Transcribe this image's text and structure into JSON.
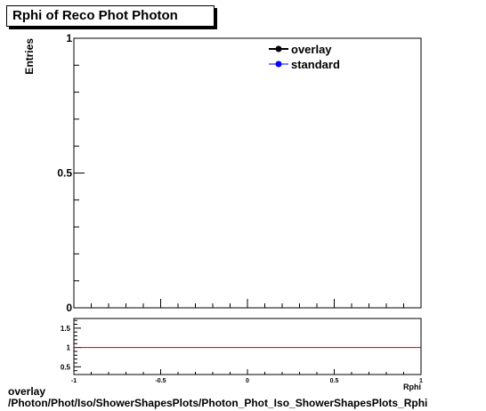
{
  "title": "Rphi of Reco Phot Photon",
  "footer": {
    "line1": "overlay",
    "line2": "/Photon/Phot/Iso/ShowerShapesPlots/Photon_Phot_Iso_ShowerShapesPlots_Rphi"
  },
  "colors": {
    "overlay": "#000000",
    "standard": "#0000ff",
    "ratio_line": "#cc0000"
  },
  "chart_data": [
    {
      "type": "line",
      "ylabel": "Entries",
      "ylim": [
        0,
        1
      ],
      "yticks": [
        "0",
        "0.5",
        "1"
      ],
      "xlim": [
        -1,
        1
      ],
      "legend_position": "top-right",
      "series": [
        {
          "name": "overlay",
          "x": [],
          "y": []
        },
        {
          "name": "standard",
          "x": [],
          "y": []
        }
      ]
    },
    {
      "type": "line",
      "xlabel": "Rphi",
      "xlim": [
        -1,
        1
      ],
      "xticks": [
        "-1",
        "-0.5",
        "0",
        "0.5",
        "1"
      ],
      "ylim": [
        0.3,
        1.75
      ],
      "yticks": [
        "0.5",
        "1",
        "1.5"
      ],
      "series": [
        {
          "x": [
            -1,
            1
          ],
          "y": [
            1,
            1
          ]
        }
      ]
    }
  ]
}
